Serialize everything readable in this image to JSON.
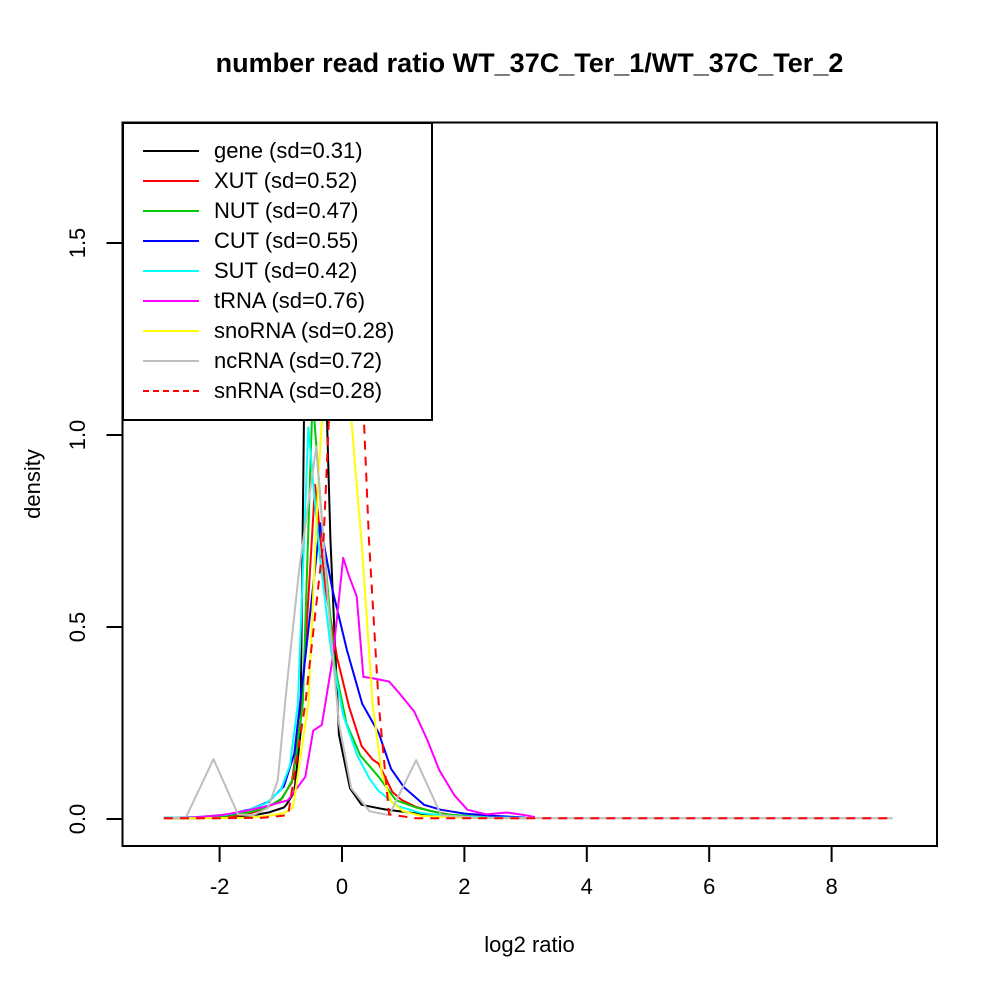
{
  "chart_data": {
    "type": "line",
    "title": "number read ratio WT_37C_Ter_1/WT_37C_Ter_2",
    "xlabel": "log2 ratio",
    "ylabel": "density",
    "xlim": [
      -3.6,
      9.7
    ],
    "ylim": [
      -0.07,
      1.81
    ],
    "x_ticks": [
      {
        "value": -2,
        "label": "-2"
      },
      {
        "value": 0,
        "label": "0"
      },
      {
        "value": 2,
        "label": "2"
      },
      {
        "value": 4,
        "label": "4"
      },
      {
        "value": 6,
        "label": "6"
      },
      {
        "value": 8,
        "label": "8"
      }
    ],
    "y_ticks": [
      {
        "value": 0.0,
        "label": "0.0"
      },
      {
        "value": 0.5,
        "label": "0.5"
      },
      {
        "value": 1.0,
        "label": "1.0"
      },
      {
        "value": 1.5,
        "label": "1.5"
      }
    ],
    "grid": false,
    "legend_position": "topleft",
    "series": [
      {
        "name": "gene",
        "label": "gene (sd=0.31)",
        "color": "#000000",
        "dash": false,
        "points": [
          [
            -2.91,
            0.002
          ],
          [
            -2.4,
            0.002
          ],
          [
            -2.0,
            0.004
          ],
          [
            -1.7,
            0.007
          ],
          [
            -1.45,
            0.01
          ],
          [
            -1.2,
            0.017
          ],
          [
            -0.95,
            0.03
          ],
          [
            -0.91,
            0.037
          ],
          [
            -0.78,
            0.07
          ],
          [
            -0.68,
            0.22
          ],
          [
            -0.6,
            1.35
          ],
          [
            -0.3,
            1.35
          ],
          [
            -0.19,
            0.73
          ],
          [
            -0.05,
            0.22
          ],
          [
            0.13,
            0.08
          ],
          [
            0.32,
            0.037
          ],
          [
            0.7,
            0.025
          ],
          [
            1.09,
            0.017
          ],
          [
            1.6,
            0.007
          ],
          [
            2.2,
            0.003
          ],
          [
            3.0,
            0.002
          ]
        ]
      },
      {
        "name": "XUT",
        "label": "XUT (sd=0.52)",
        "color": "#FF0000",
        "dash": false,
        "points": [
          [
            -2.91,
            0.002
          ],
          [
            -2.3,
            0.003
          ],
          [
            -1.9,
            0.006
          ],
          [
            -1.55,
            0.012
          ],
          [
            -1.25,
            0.028
          ],
          [
            -1.0,
            0.05
          ],
          [
            -0.82,
            0.095
          ],
          [
            -0.66,
            0.28
          ],
          [
            -0.44,
            0.87
          ],
          [
            -0.27,
            0.6
          ],
          [
            -0.08,
            0.42
          ],
          [
            0.12,
            0.29
          ],
          [
            0.32,
            0.19
          ],
          [
            0.5,
            0.155
          ],
          [
            0.6,
            0.144
          ],
          [
            0.82,
            0.071
          ],
          [
            0.98,
            0.049
          ],
          [
            1.2,
            0.032
          ],
          [
            1.42,
            0.022
          ],
          [
            1.8,
            0.01
          ],
          [
            2.3,
            0.005
          ],
          [
            3.0,
            0.003
          ]
        ]
      },
      {
        "name": "NUT",
        "label": "NUT (sd=0.47)",
        "color": "#00CD00",
        "dash": false,
        "points": [
          [
            -2.91,
            0.002
          ],
          [
            -2.3,
            0.004
          ],
          [
            -1.85,
            0.009
          ],
          [
            -1.5,
            0.018
          ],
          [
            -1.2,
            0.032
          ],
          [
            -0.97,
            0.055
          ],
          [
            -0.8,
            0.105
          ],
          [
            -0.64,
            0.3
          ],
          [
            -0.48,
            1.1
          ],
          [
            -0.3,
            0.72
          ],
          [
            -0.12,
            0.4
          ],
          [
            0.07,
            0.25
          ],
          [
            0.3,
            0.165
          ],
          [
            0.6,
            0.11
          ],
          [
            0.88,
            0.049
          ],
          [
            1.23,
            0.029
          ],
          [
            1.7,
            0.012
          ],
          [
            2.2,
            0.006
          ],
          [
            3.0,
            0.003
          ]
        ]
      },
      {
        "name": "CUT",
        "label": "CUT (sd=0.55)",
        "color": "#0000FF",
        "dash": false,
        "points": [
          [
            -2.91,
            0.003
          ],
          [
            -2.35,
            0.005
          ],
          [
            -1.85,
            0.012
          ],
          [
            -1.5,
            0.025
          ],
          [
            -1.2,
            0.045
          ],
          [
            -0.95,
            0.085
          ],
          [
            -0.78,
            0.17
          ],
          [
            -0.6,
            0.42
          ],
          [
            -0.36,
            0.77
          ],
          [
            -0.16,
            0.6
          ],
          [
            0.08,
            0.44
          ],
          [
            0.33,
            0.3
          ],
          [
            0.6,
            0.224
          ],
          [
            0.8,
            0.131
          ],
          [
            1.01,
            0.083
          ],
          [
            1.34,
            0.037
          ],
          [
            1.62,
            0.024
          ],
          [
            2.0,
            0.014
          ],
          [
            2.5,
            0.008
          ],
          [
            3.0,
            0.004
          ]
        ]
      },
      {
        "name": "SUT",
        "label": "SUT (sd=0.42)",
        "color": "#00FFFF",
        "dash": false,
        "points": [
          [
            -2.91,
            0.003
          ],
          [
            -2.4,
            0.005
          ],
          [
            -1.9,
            0.011
          ],
          [
            -1.55,
            0.022
          ],
          [
            -1.25,
            0.04
          ],
          [
            -1.0,
            0.075
          ],
          [
            -0.85,
            0.14
          ],
          [
            -0.72,
            0.3
          ],
          [
            -0.55,
            1.02
          ],
          [
            -0.36,
            0.68
          ],
          [
            -0.18,
            0.44
          ],
          [
            0.02,
            0.27
          ],
          [
            0.25,
            0.165
          ],
          [
            0.45,
            0.105
          ],
          [
            0.6,
            0.073
          ],
          [
            0.9,
            0.034
          ],
          [
            1.3,
            0.015
          ],
          [
            1.8,
            0.007
          ],
          [
            2.4,
            0.004
          ],
          [
            3.0,
            0.003
          ]
        ]
      },
      {
        "name": "tRNA",
        "label": "tRNA (sd=0.76)",
        "color": "#FF00FF",
        "dash": false,
        "points": [
          [
            -2.91,
            0.002
          ],
          [
            -2.45,
            0.004
          ],
          [
            -1.98,
            0.01
          ],
          [
            -1.6,
            0.02
          ],
          [
            -1.21,
            0.034
          ],
          [
            -0.88,
            0.049
          ],
          [
            -0.6,
            0.11
          ],
          [
            -0.47,
            0.23
          ],
          [
            -0.33,
            0.245
          ],
          [
            -0.15,
            0.42
          ],
          [
            0.02,
            0.68
          ],
          [
            0.11,
            0.635
          ],
          [
            0.24,
            0.58
          ],
          [
            0.35,
            0.37
          ],
          [
            0.55,
            0.365
          ],
          [
            0.77,
            0.358
          ],
          [
            0.93,
            0.329
          ],
          [
            1.18,
            0.28
          ],
          [
            1.39,
            0.207
          ],
          [
            1.59,
            0.127
          ],
          [
            1.84,
            0.061
          ],
          [
            2.05,
            0.024
          ],
          [
            2.36,
            0.012
          ],
          [
            2.7,
            0.017
          ],
          [
            3.0,
            0.01
          ],
          [
            3.15,
            0.005
          ]
        ]
      },
      {
        "name": "snoRNA",
        "label": "snoRNA (sd=0.28)",
        "color": "#FFFF00",
        "dash": false,
        "points": [
          [
            -2.91,
            0.002
          ],
          [
            -2.2,
            0.002
          ],
          [
            -1.6,
            0.003
          ],
          [
            -1.2,
            0.008
          ],
          [
            -0.95,
            0.015
          ],
          [
            -0.8,
            0.03
          ],
          [
            -0.55,
            0.3
          ],
          [
            -0.38,
            0.9
          ],
          [
            -0.25,
            1.25
          ],
          [
            0.05,
            1.25
          ],
          [
            0.2,
            0.95
          ],
          [
            0.33,
            0.7
          ],
          [
            0.5,
            0.3
          ],
          [
            0.65,
            0.12
          ],
          [
            0.8,
            0.046
          ],
          [
            1.0,
            0.02
          ],
          [
            1.3,
            0.008
          ],
          [
            2.0,
            0.003
          ],
          [
            3.0,
            0.002
          ]
        ]
      },
      {
        "name": "ncRNA",
        "label": "ncRNA (sd=0.72)",
        "color": "#BEBEBE",
        "dash": false,
        "points": [
          [
            -2.91,
            0.002
          ],
          [
            -2.55,
            0.004
          ],
          [
            -2.1,
            0.156
          ],
          [
            -1.7,
            0.012
          ],
          [
            -1.45,
            0.01
          ],
          [
            -1.21,
            0.029
          ],
          [
            -1.05,
            0.1
          ],
          [
            -0.9,
            0.35
          ],
          [
            -0.7,
            0.65
          ],
          [
            -0.42,
            0.97
          ],
          [
            -0.22,
            0.55
          ],
          [
            -0.05,
            0.25
          ],
          [
            0.15,
            0.08
          ],
          [
            0.45,
            0.02
          ],
          [
            0.77,
            0.01
          ],
          [
            1.21,
            0.153
          ],
          [
            1.62,
            0.01
          ],
          [
            2.2,
            0.003
          ],
          [
            3.5,
            0.002
          ],
          [
            9.0,
            0.002
          ]
        ]
      },
      {
        "name": "snRNA",
        "label": "snRNA (sd=0.28)",
        "color": "#FF0000",
        "dash": true,
        "points": [
          [
            -2.91,
            0.002
          ],
          [
            -2.0,
            0.002
          ],
          [
            -1.3,
            0.003
          ],
          [
            -0.88,
            0.01
          ],
          [
            -0.6,
            0.3
          ],
          [
            -0.3,
            0.73
          ],
          [
            -0.1,
            1.45
          ],
          [
            0.25,
            1.45
          ],
          [
            0.44,
            0.73
          ],
          [
            0.6,
            0.3
          ],
          [
            0.77,
            0.012
          ],
          [
            1.2,
            0.002
          ],
          [
            9.0,
            0.002
          ]
        ]
      }
    ]
  }
}
